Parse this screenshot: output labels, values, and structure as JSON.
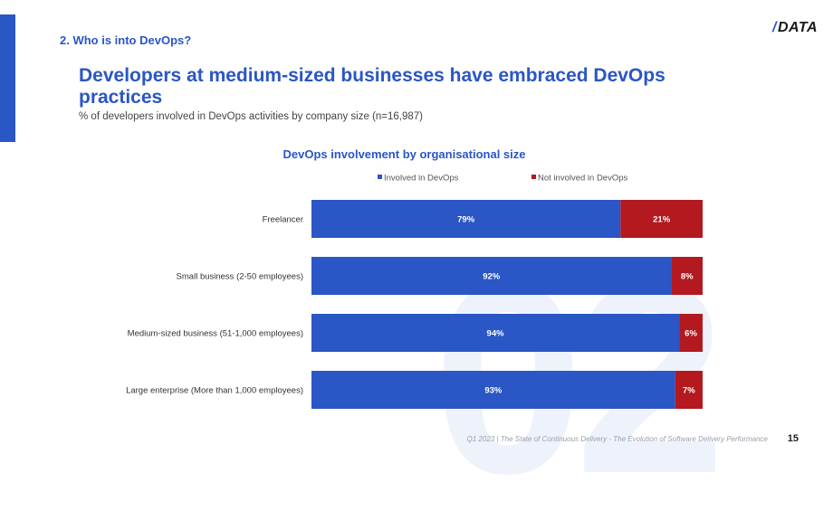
{
  "header": {
    "section_label": "2. Who is into DevOps?",
    "logo_text": "DATA",
    "title": "Developers at medium-sized businesses have embraced DevOps practices",
    "subtitle": "% of developers involved in DevOps activities by company size (n=16,987)"
  },
  "watermark": "02",
  "footer": {
    "source": "Q1 2023 | The State of Continuous Delivery - The Evolution of Software Delivery Performance",
    "page_number": "15"
  },
  "colors": {
    "brand": "#2a56c6",
    "involved": "#2a56c6",
    "not_involved": "#b3191f"
  },
  "chart_data": {
    "type": "bar",
    "orientation": "horizontal",
    "stacked": true,
    "percent_stacked": true,
    "title": "DevOps involvement by organisational size",
    "categories": [
      "Freelancer",
      "Small business (2-50 employees)",
      "Medium-sized business (51-1,000 employees)",
      "Large enterprise (More than 1,000 employees)"
    ],
    "series": [
      {
        "name": "Involved in DevOps",
        "values": [
          79,
          92,
          94,
          93
        ],
        "labels": [
          "79%",
          "92%",
          "94%",
          "93%"
        ]
      },
      {
        "name": "Not involved in DevOps",
        "values": [
          21,
          8,
          6,
          7
        ],
        "labels": [
          "21%",
          "8%",
          "6%",
          "7%"
        ]
      }
    ],
    "xlim": [
      0,
      100
    ],
    "legend": "top",
    "grid": false
  }
}
